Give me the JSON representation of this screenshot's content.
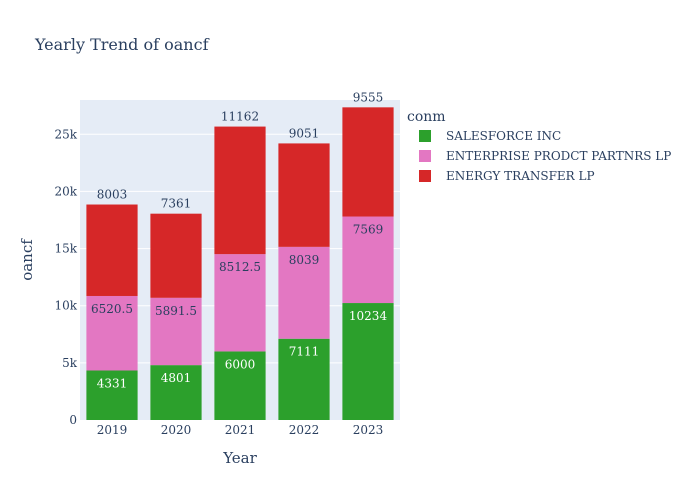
{
  "chart_data": {
    "type": "bar",
    "stacked": true,
    "title": "Yearly Trend of oancf",
    "xlabel": "Year",
    "ylabel": "oancf",
    "categories": [
      "2019",
      "2020",
      "2021",
      "2022",
      "2023"
    ],
    "ylim": [
      0,
      28000
    ],
    "yticks": [
      0,
      5000,
      10000,
      15000,
      20000,
      25000
    ],
    "ytick_labels": [
      "0",
      "5k",
      "10k",
      "15k",
      "20k",
      "25k"
    ],
    "grid": true,
    "legend_title": "conm",
    "legend_position": "top-right",
    "series": [
      {
        "name": "SALESFORCE INC",
        "color": "#2ca02c",
        "label_color": "#ffffff",
        "label_position": "inside",
        "values": [
          4331,
          4801,
          6000,
          7111,
          10234
        ],
        "labels": [
          "4331",
          "4801",
          "6000",
          "7111",
          "10234"
        ]
      },
      {
        "name": "ENTERPRISE PRODCT PARTNRS LP",
        "color": "#e377c2",
        "label_color": "#2a3f5f",
        "label_position": "inside",
        "values": [
          6520.5,
          5891.5,
          8512.5,
          8039,
          7569
        ],
        "labels": [
          "6520.5",
          "5891.5",
          "8512.5",
          "8039",
          "7569"
        ]
      },
      {
        "name": "ENERGY TRANSFER LP",
        "color": "#d62728",
        "label_color": "#2a3f5f",
        "label_position": "outside",
        "values": [
          8003,
          7361,
          11162,
          9051,
          9555
        ],
        "labels": [
          "8003",
          "7361",
          "11162",
          "9051",
          "9555"
        ]
      }
    ]
  }
}
